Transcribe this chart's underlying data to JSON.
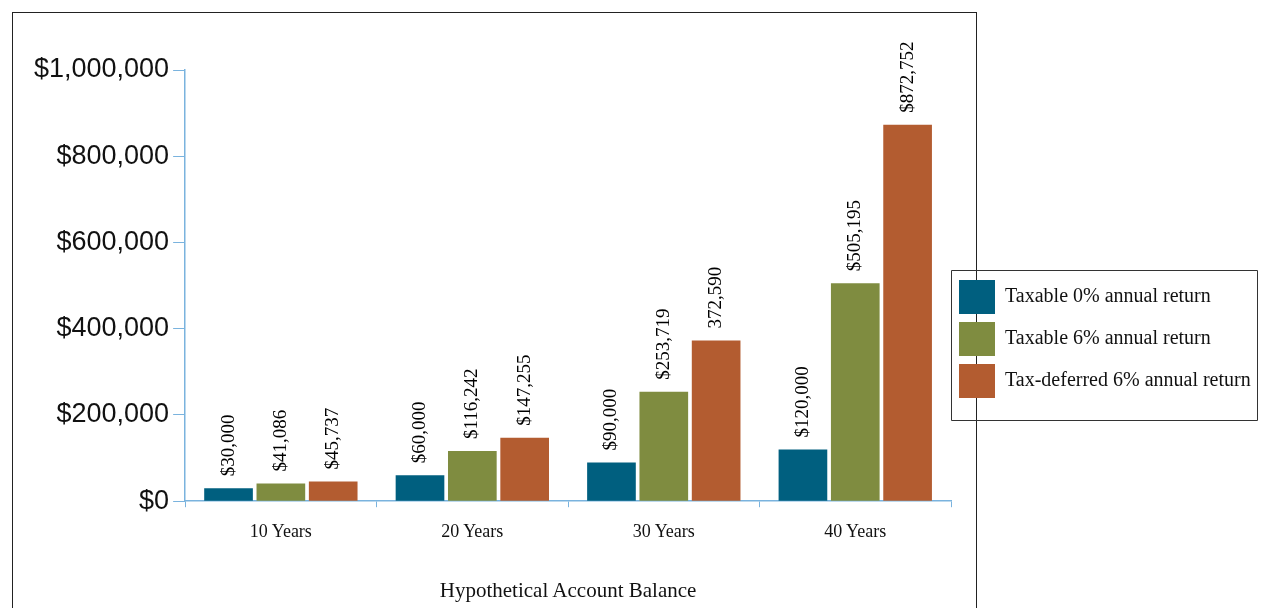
{
  "chart_data": {
    "type": "bar",
    "xlabel": "Hypothetical Account Balance",
    "categories": [
      "10 Years",
      "20 Years",
      "30 Years",
      "40 Years"
    ],
    "series": [
      {
        "name": "Taxable 0% annual return",
        "color": "#005f7f",
        "values": [
          30000,
          60000,
          90000,
          120000
        ],
        "value_labels": [
          "$30,000",
          "$60,000",
          "$90,000",
          "$120,000"
        ]
      },
      {
        "name": "Taxable 6% annual return",
        "color": "#7f8c40",
        "values": [
          41086,
          116242,
          253719,
          505195
        ],
        "value_labels": [
          "$41,086",
          "$116,242",
          "$253,719",
          "$505,195"
        ]
      },
      {
        "name": "Tax-deferred 6% annual return",
        "color": "#b35c30",
        "values": [
          45737,
          147255,
          372590,
          872752
        ],
        "value_labels": [
          "$45,737",
          "$147,255",
          "372,590",
          "$872,752"
        ]
      }
    ],
    "ylim": [
      0,
      1000000
    ],
    "yticks": [
      {
        "value": 0,
        "label": "$0"
      },
      {
        "value": 200000,
        "label": "$200,000"
      },
      {
        "value": 400000,
        "label": "$400,000"
      },
      {
        "value": 600000,
        "label": "$600,000"
      },
      {
        "value": 800000,
        "label": "$800,000"
      },
      {
        "value": 1000000,
        "label": "$1,000,000"
      }
    ],
    "grid": false,
    "legend": "right"
  }
}
